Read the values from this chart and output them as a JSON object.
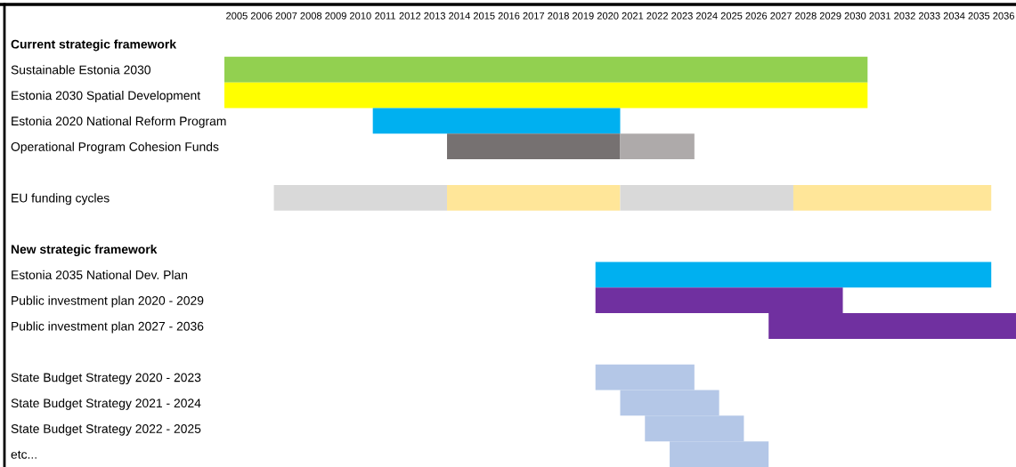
{
  "chart_data": {
    "type": "bar",
    "orientation": "horizontal",
    "categories": [
      "Current strategic framework",
      "Sustainable Estonia 2030",
      "Estonia 2030 Spatial Development",
      "Estonia 2020 National Reform Program",
      "Operational Program Cohesion Funds",
      null,
      "EU funding cycles",
      null,
      "New strategic framework",
      "Estonia 2035 National Dev. Plan",
      "Public investment plan 2020 - 2029",
      "Public investment plan 2027 - 2036",
      null,
      "State Budget Strategy 2020 - 2023",
      "State Budget Strategy 2021 - 2024",
      "State Budget Strategy 2022 - 2025",
      "etc..."
    ],
    "series": [
      {
        "color": "#92d050",
        "base": [
          null,
          2005,
          null,
          null,
          null,
          null,
          null,
          null,
          null,
          null,
          null,
          null,
          null,
          null,
          null,
          null,
          null
        ],
        "values": [
          null,
          26,
          null,
          null,
          null,
          null,
          null,
          null,
          null,
          null,
          null,
          null,
          null,
          null,
          null,
          null,
          null
        ]
      },
      {
        "color": "#ffff00",
        "base": [
          null,
          null,
          2005,
          null,
          null,
          null,
          null,
          null,
          null,
          null,
          null,
          null,
          null,
          null,
          null,
          null,
          null
        ],
        "values": [
          null,
          null,
          26,
          null,
          null,
          null,
          null,
          null,
          null,
          null,
          null,
          null,
          null,
          null,
          null,
          null,
          null
        ]
      },
      {
        "color": "#00b0f0",
        "base": [
          null,
          null,
          null,
          2011,
          null,
          null,
          null,
          null,
          null,
          2020,
          null,
          null,
          null,
          null,
          null,
          null,
          null
        ],
        "values": [
          null,
          null,
          null,
          10,
          null,
          null,
          null,
          null,
          null,
          16,
          null,
          null,
          null,
          null,
          null,
          null,
          null
        ]
      },
      {
        "color": "#767171",
        "base": [
          null,
          null,
          null,
          null,
          2014,
          null,
          null,
          null,
          null,
          null,
          null,
          null,
          null,
          null,
          null,
          null,
          null
        ],
        "values": [
          null,
          null,
          null,
          null,
          7,
          null,
          null,
          null,
          null,
          null,
          null,
          null,
          null,
          null,
          null,
          null,
          null
        ]
      },
      {
        "color": "#aeaaaa",
        "base": [
          null,
          null,
          null,
          null,
          2021,
          null,
          null,
          null,
          null,
          null,
          null,
          null,
          null,
          null,
          null,
          null,
          null
        ],
        "values": [
          null,
          null,
          null,
          null,
          3,
          null,
          null,
          null,
          null,
          null,
          null,
          null,
          null,
          null,
          null,
          null,
          null
        ]
      },
      {
        "color": "#d9d9d9",
        "base": [
          null,
          null,
          null,
          null,
          null,
          null,
          2007,
          null,
          null,
          null,
          null,
          null,
          null,
          null,
          null,
          null,
          null
        ],
        "values": [
          null,
          null,
          null,
          null,
          null,
          null,
          7,
          null,
          null,
          null,
          null,
          null,
          null,
          null,
          null,
          null,
          null
        ]
      },
      {
        "color": "#ffe699",
        "base": [
          null,
          null,
          null,
          null,
          null,
          null,
          2014,
          null,
          null,
          null,
          null,
          null,
          null,
          null,
          null,
          null,
          null
        ],
        "values": [
          null,
          null,
          null,
          null,
          null,
          null,
          7,
          null,
          null,
          null,
          null,
          null,
          null,
          null,
          null,
          null,
          null
        ]
      },
      {
        "color": "#d9d9d9",
        "base": [
          null,
          null,
          null,
          null,
          null,
          null,
          2021,
          null,
          null,
          null,
          null,
          null,
          null,
          null,
          null,
          null,
          null
        ],
        "values": [
          null,
          null,
          null,
          null,
          null,
          null,
          7,
          null,
          null,
          null,
          null,
          null,
          null,
          null,
          null,
          null,
          null
        ]
      },
      {
        "color": "#ffe699",
        "base": [
          null,
          null,
          null,
          null,
          null,
          null,
          2028,
          null,
          null,
          null,
          null,
          null,
          null,
          null,
          null,
          null,
          null
        ],
        "values": [
          null,
          null,
          null,
          null,
          null,
          null,
          8,
          null,
          null,
          null,
          null,
          null,
          null,
          null,
          null,
          null,
          null
        ]
      },
      {
        "color": "#7030a0",
        "base": [
          null,
          null,
          null,
          null,
          null,
          null,
          null,
          null,
          null,
          null,
          2020,
          2027,
          null,
          null,
          null,
          null,
          null
        ],
        "values": [
          null,
          null,
          null,
          null,
          null,
          null,
          null,
          null,
          null,
          null,
          10,
          10,
          null,
          null,
          null,
          null,
          null
        ]
      },
      {
        "color": "#b4c7e7",
        "base": [
          null,
          null,
          null,
          null,
          null,
          null,
          null,
          null,
          null,
          null,
          null,
          null,
          null,
          2020,
          2021,
          2022,
          2023
        ],
        "values": [
          null,
          null,
          null,
          null,
          null,
          null,
          null,
          null,
          null,
          null,
          null,
          null,
          null,
          4,
          4,
          4,
          4
        ]
      }
    ],
    "xlim": [
      2005,
      2037
    ],
    "xticks": [
      {
        "value": 2005.5,
        "label": "2005"
      },
      {
        "value": 2006.5,
        "label": "2006"
      },
      {
        "value": 2007.5,
        "label": "2007"
      },
      {
        "value": 2008.5,
        "label": "2008"
      },
      {
        "value": 2009.5,
        "label": "2009"
      },
      {
        "value": 2010.5,
        "label": "2010"
      },
      {
        "value": 2011.5,
        "label": "2011"
      },
      {
        "value": 2012.5,
        "label": "2012"
      },
      {
        "value": 2013.5,
        "label": "2013"
      },
      {
        "value": 2014.5,
        "label": "2014"
      },
      {
        "value": 2015.5,
        "label": "2015"
      },
      {
        "value": 2016.5,
        "label": "2016"
      },
      {
        "value": 2017.5,
        "label": "2017"
      },
      {
        "value": 2018.5,
        "label": "2018"
      },
      {
        "value": 2019.5,
        "label": "2019"
      },
      {
        "value": 2020.5,
        "label": "2020"
      },
      {
        "value": 2021.5,
        "label": "2021"
      },
      {
        "value": 2022.5,
        "label": "2022"
      },
      {
        "value": 2023.5,
        "label": "2023"
      },
      {
        "value": 2024.5,
        "label": "2024"
      },
      {
        "value": 2025.5,
        "label": "2025"
      },
      {
        "value": 2026.5,
        "label": "2026"
      },
      {
        "value": 2027.5,
        "label": "2027"
      },
      {
        "value": 2028.5,
        "label": "2028"
      },
      {
        "value": 2029.5,
        "label": "2029"
      },
      {
        "value": 2030.5,
        "label": "2030"
      },
      {
        "value": 2031.5,
        "label": "2031"
      },
      {
        "value": 2032.5,
        "label": "2032"
      },
      {
        "value": 2033.5,
        "label": "2033"
      },
      {
        "value": 2034.5,
        "label": "2034"
      },
      {
        "value": 2035.5,
        "label": "2035"
      },
      {
        "value": 2036.5,
        "label": "2036"
      }
    ],
    "grid": false,
    "legend": false
  }
}
